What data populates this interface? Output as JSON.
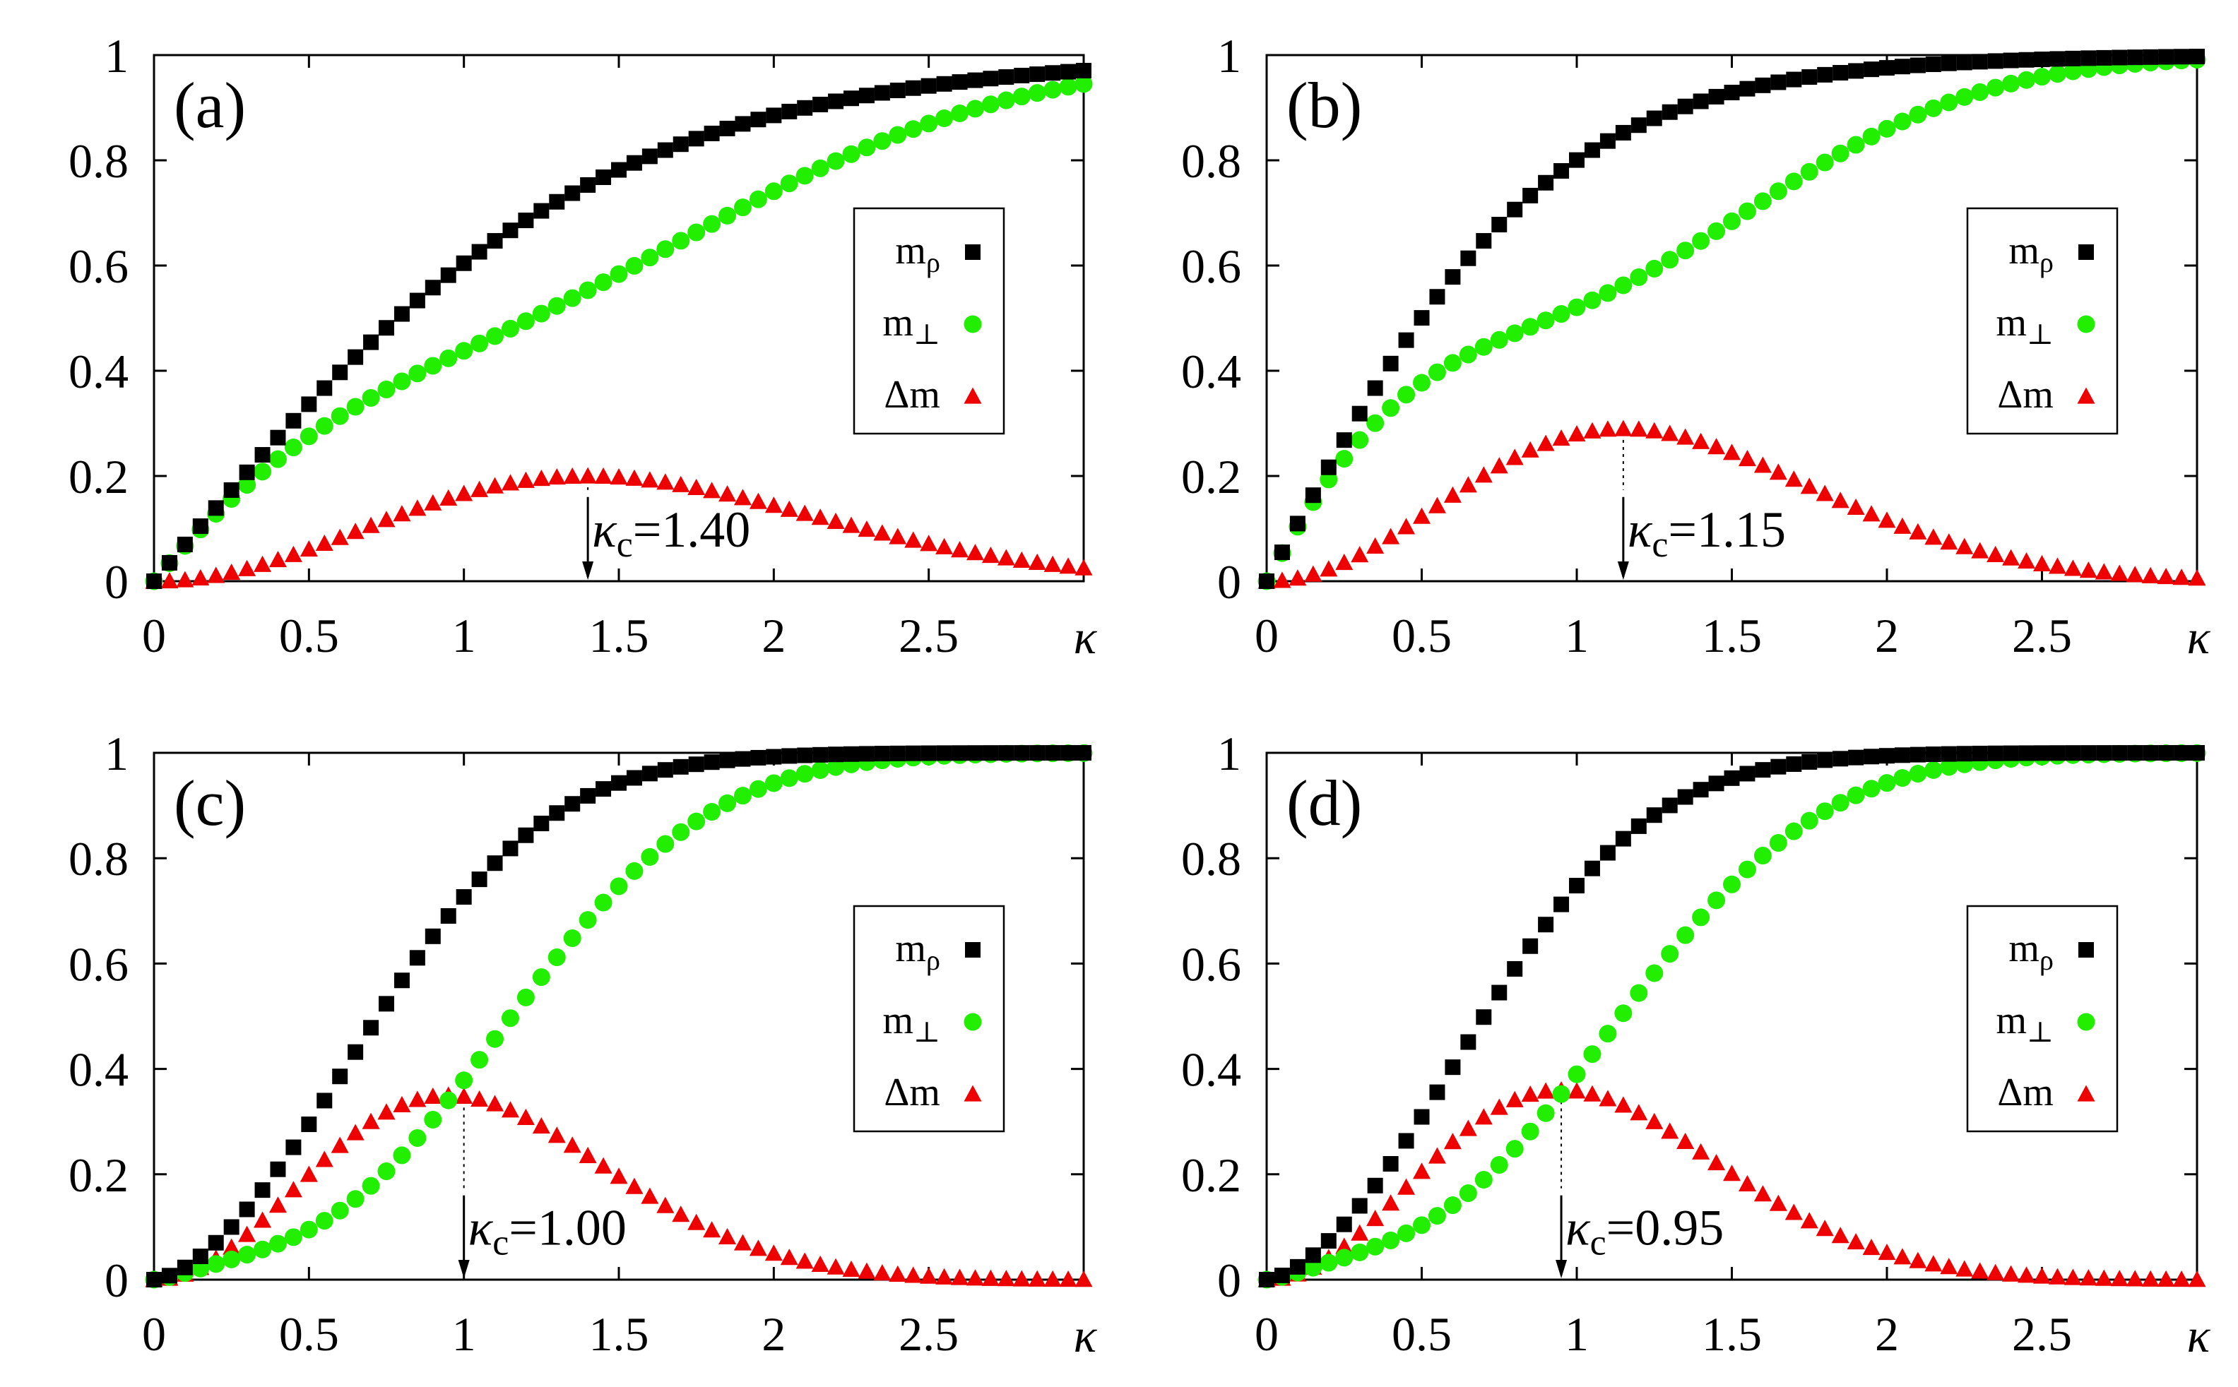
{
  "figure": {
    "title": ""
  },
  "colors": {
    "m_rho": "#000000",
    "m_perp": "#22ee00",
    "delta_m": "#ee0000",
    "axis": "#000000"
  },
  "legend": {
    "m_rho": {
      "base": "m",
      "sub": "ρ"
    },
    "m_perp": {
      "base": "m",
      "sub": "⊥"
    },
    "delta_m": {
      "base": "Δm",
      "sub": ""
    }
  },
  "chart_data": [
    {
      "type": "scatter",
      "panel": "(a)",
      "xlabel": "κ",
      "ylabel": "",
      "xlim": [
        0,
        3
      ],
      "ylim": [
        0,
        1
      ],
      "xticks": [
        0,
        0.5,
        1,
        1.5,
        2,
        2.5
      ],
      "xtick_labels": [
        "0",
        "0.5",
        "1",
        "1.5",
        "2",
        "2.5"
      ],
      "yticks": [
        0,
        0.2,
        0.4,
        0.6,
        0.8,
        1
      ],
      "ytick_labels": [
        "0",
        "0.2",
        "0.4",
        "0.6",
        "0.8",
        "1"
      ],
      "kappa_c": 1.4,
      "kappa_c_label": {
        "symbol": "κ",
        "sub": "c",
        "value": "=1.40"
      },
      "series": [
        {
          "name": "m_rho",
          "x_range": [
            0,
            3
          ],
          "n_points": 61,
          "model": "tanh_scaled",
          "params": {
            "a": 0.7,
            "p": 1.0
          }
        },
        {
          "name": "m_perp",
          "x_range": [
            0,
            3
          ],
          "n_points": 61,
          "model": "m_rho_minus_delta"
        },
        {
          "name": "delta_m",
          "x_range": [
            0,
            3
          ],
          "n_points": 61,
          "model": "peak",
          "params": {
            "k": 1.4,
            "h": 0.2
          }
        }
      ]
    },
    {
      "type": "scatter",
      "panel": "(b)",
      "xlabel": "κ",
      "ylabel": "",
      "xlim": [
        0,
        3
      ],
      "ylim": [
        0,
        1
      ],
      "xticks": [
        0,
        0.5,
        1,
        1.5,
        2,
        2.5
      ],
      "xtick_labels": [
        "0",
        "0.5",
        "1",
        "1.5",
        "2",
        "2.5"
      ],
      "yticks": [
        0,
        0.2,
        0.4,
        0.6,
        0.8,
        1
      ],
      "ytick_labels": [
        "0",
        "0.2",
        "0.4",
        "0.6",
        "0.8",
        "1"
      ],
      "kappa_c": 1.15,
      "kappa_c_label": {
        "symbol": "κ",
        "sub": "c",
        "value": "=1.15"
      },
      "series": [
        {
          "name": "m_rho",
          "x_range": [
            0,
            3
          ],
          "n_points": 61,
          "model": "tanh_scaled",
          "params": {
            "a": 1.1,
            "p": 1.0
          }
        },
        {
          "name": "m_perp",
          "x_range": [
            0,
            3
          ],
          "n_points": 61,
          "model": "m_rho_minus_delta"
        },
        {
          "name": "delta_m",
          "x_range": [
            0,
            3
          ],
          "n_points": 61,
          "model": "peak",
          "params": {
            "k": 1.15,
            "h": 0.29
          }
        }
      ]
    },
    {
      "type": "scatter",
      "panel": "(c)",
      "xlabel": "κ",
      "ylabel": "",
      "xlim": [
        0,
        3
      ],
      "ylim": [
        0,
        1
      ],
      "xticks": [
        0,
        0.5,
        1,
        1.5,
        2,
        2.5
      ],
      "xtick_labels": [
        "0",
        "0.5",
        "1",
        "1.5",
        "2",
        "2.5"
      ],
      "yticks": [
        0,
        0.2,
        0.4,
        0.6,
        0.8,
        1
      ],
      "ytick_labels": [
        "0",
        "0.2",
        "0.4",
        "0.6",
        "0.8",
        "1"
      ],
      "kappa_c": 1.0,
      "kappa_c_label": {
        "symbol": "κ",
        "sub": "c",
        "value": "=1.00"
      },
      "series": [
        {
          "name": "m_rho",
          "x_range": [
            0,
            3
          ],
          "n_points": 61,
          "model": "tanh_scaled",
          "params": {
            "a": 0.95,
            "p": 1.6
          }
        },
        {
          "name": "m_perp",
          "x_range": [
            0,
            3
          ],
          "n_points": 61,
          "model": "m_rho_minus_delta"
        },
        {
          "name": "delta_m",
          "x_range": [
            0,
            3
          ],
          "n_points": 61,
          "model": "peak",
          "params": {
            "k": 0.95,
            "h": 0.35
          }
        }
      ]
    },
    {
      "type": "scatter",
      "panel": "(d)",
      "xlabel": "κ",
      "ylabel": "",
      "xlim": [
        0,
        3
      ],
      "ylim": [
        0,
        1
      ],
      "xticks": [
        0,
        0.5,
        1,
        1.5,
        2,
        2.5
      ],
      "xtick_labels": [
        "0",
        "0.5",
        "1",
        "1.5",
        "2",
        "2.5"
      ],
      "yticks": [
        0,
        0.2,
        0.4,
        0.6,
        0.8,
        1
      ],
      "ytick_labels": [
        "0",
        "0.2",
        "0.4",
        "0.6",
        "0.8",
        "1"
      ],
      "kappa_c": 0.95,
      "kappa_c_label": {
        "symbol": "κ",
        "sub": "c",
        "value": "=0.95"
      },
      "series": [
        {
          "name": "m_rho",
          "x_range": [
            0,
            3
          ],
          "n_points": 61,
          "model": "tanh_scaled",
          "params": {
            "a": 0.98,
            "p": 1.6
          }
        },
        {
          "name": "m_perp",
          "x_range": [
            0,
            3
          ],
          "n_points": 61,
          "model": "m_rho_minus_delta"
        },
        {
          "name": "delta_m",
          "x_range": [
            0,
            3
          ],
          "n_points": 61,
          "model": "peak",
          "params": {
            "k": 0.95,
            "h": 0.36
          }
        }
      ]
    }
  ]
}
